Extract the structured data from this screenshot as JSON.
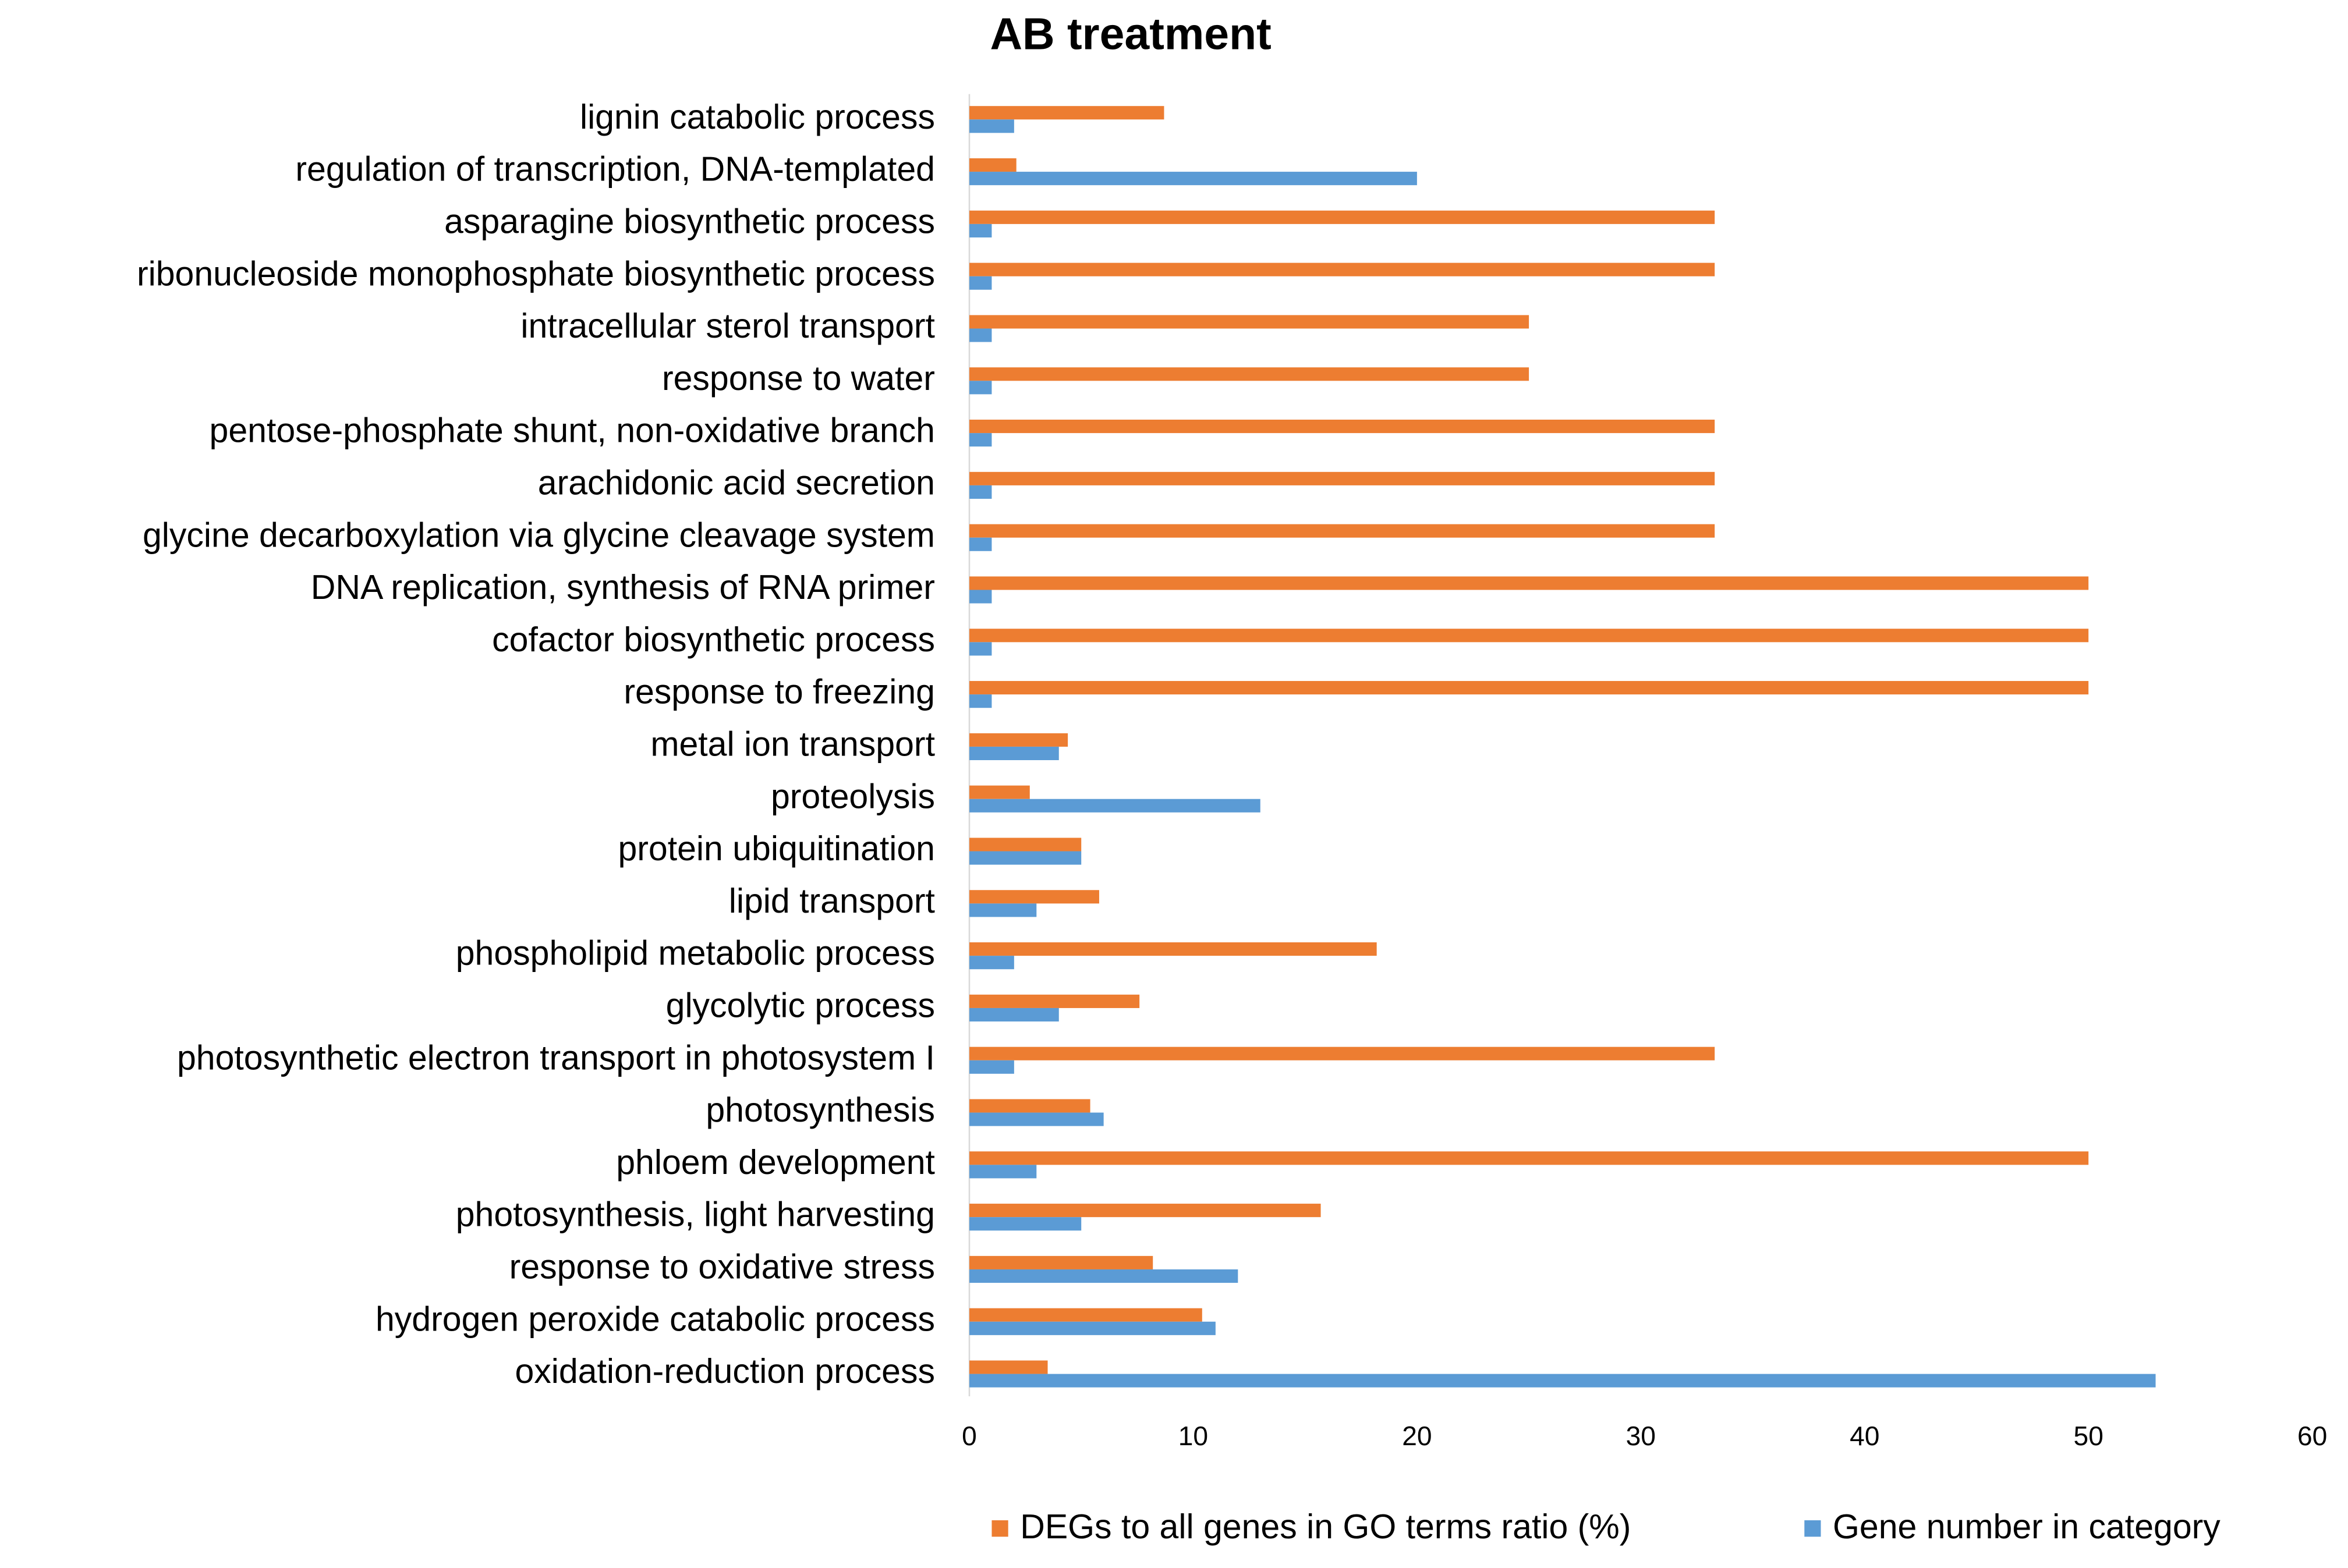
{
  "chart_data": {
    "type": "barh",
    "title": "AB treatment",
    "categories": [
      "lignin catabolic process",
      "regulation of transcription, DNA-templated",
      "asparagine biosynthetic process",
      "ribonucleoside monophosphate biosynthetic process",
      "intracellular sterol transport",
      "response to water",
      "pentose-phosphate shunt, non-oxidative branch",
      "arachidonic acid secretion",
      "glycine decarboxylation via glycine cleavage system",
      "DNA replication, synthesis of RNA primer",
      "cofactor biosynthetic process",
      "response to freezing",
      "metal ion transport",
      "proteolysis",
      "protein ubiquitination",
      "lipid transport",
      "phospholipid metabolic process",
      "glycolytic process",
      "photosynthetic electron transport in photosystem I",
      "photosynthesis",
      "phloem development",
      "photosynthesis, light harvesting",
      "response to oxidative stress",
      "hydrogen peroxide catabolic process",
      "oxidation-reduction process"
    ],
    "series": [
      {
        "name": "DEGs to all genes in GO terms ratio (%)",
        "color": "#ED7D31",
        "values": [
          8.7,
          2.1,
          33.3,
          33.3,
          25,
          25,
          33.3,
          33.3,
          33.3,
          50,
          50,
          50,
          4.4,
          2.7,
          5,
          5.8,
          18.2,
          7.6,
          33.3,
          5.4,
          50,
          15.7,
          8.2,
          10.4,
          3.5
        ]
      },
      {
        "name": "Gene number in category",
        "color": "#5B9BD5",
        "values": [
          2,
          20,
          1,
          1,
          1,
          1,
          1,
          1,
          1,
          1,
          1,
          1,
          4,
          13,
          5,
          3,
          2,
          4,
          2,
          6,
          3,
          5,
          12,
          11,
          53
        ]
      }
    ],
    "xlim": [
      0,
      60
    ],
    "xticks": [
      0,
      10,
      20,
      30,
      40,
      50,
      60
    ],
    "legend": "bottom"
  }
}
